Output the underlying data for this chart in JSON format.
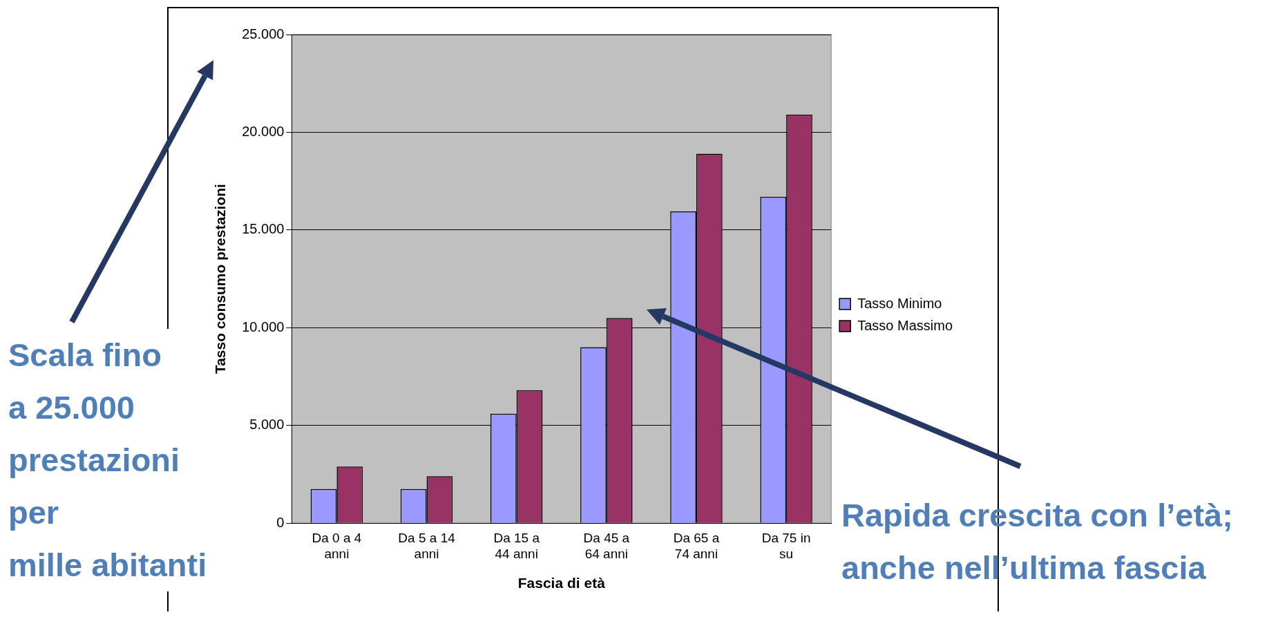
{
  "chart_data": {
    "type": "bar",
    "xlabel": "Fascia di età",
    "ylabel": "Tasso consumo prestazioni",
    "categories": [
      "Da 0 a 4 anni",
      "Da 5 a 14 anni",
      "Da 15 a 44 anni",
      "Da 45 a 64 anni",
      "Da 65 a 74 anni",
      "Da 75 in su"
    ],
    "series": [
      {
        "name": "Tasso Minimo",
        "color": "#9999ff",
        "values": [
          1750,
          1750,
          5600,
          9000,
          15950,
          16700
        ]
      },
      {
        "name": "Tasso Massimo",
        "color": "#993366",
        "values": [
          2900,
          2400,
          6800,
          10500,
          18900,
          20900
        ]
      }
    ],
    "ylim": [
      0,
      25000
    ],
    "yticks": [
      0,
      {
        "value": 5000,
        "label": "5.000"
      },
      {
        "value": 10000,
        "label": "10.000"
      },
      {
        "value": 15000,
        "label": "15.000"
      },
      {
        "value": 20000,
        "label": "20.000"
      },
      {
        "value": 25000,
        "label": "25.000"
      }
    ],
    "grid": "y",
    "legend": "right",
    "annotations": [
      "Scala fino\na 25.000\nprestazioni\nper\nmille abitanti",
      "Rapida crescita con l’età;\nanche nell’ultima fascia"
    ]
  }
}
